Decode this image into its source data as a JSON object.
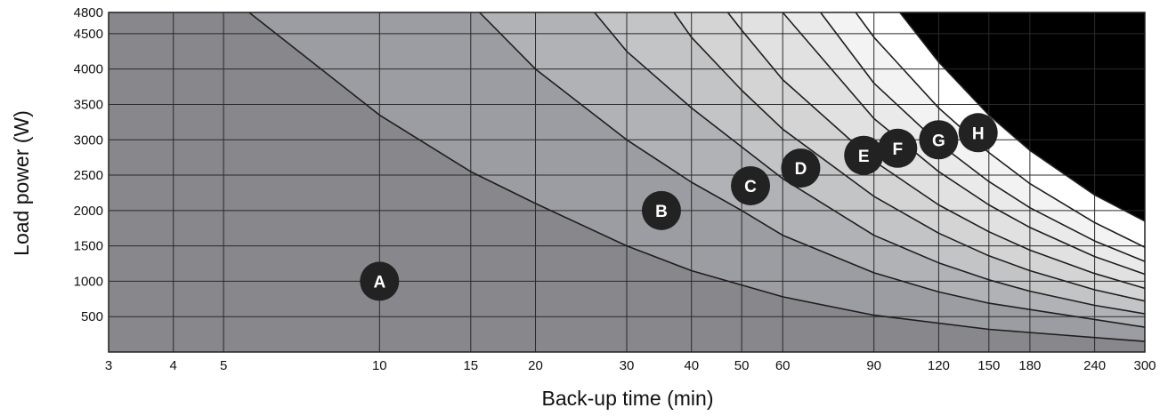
{
  "chart_data": {
    "type": "line",
    "xlabel": "Back-up time (min)",
    "ylabel": "Load power (W)",
    "x_scale": "log",
    "xlim": [
      3,
      300
    ],
    "ylim": [
      0,
      4800
    ],
    "x_ticks": [
      3,
      4,
      5,
      10,
      15,
      20,
      30,
      40,
      50,
      60,
      90,
      120,
      150,
      180,
      240,
      300
    ],
    "y_ticks": [
      500,
      1000,
      1500,
      2000,
      2500,
      3000,
      3500,
      4000,
      4500,
      4800
    ],
    "grid": true,
    "series": [
      {
        "name": "A",
        "x": [
          5.6,
          10,
          15,
          20,
          30,
          40,
          60,
          90,
          150,
          300
        ],
        "y": [
          4800,
          3350,
          2550,
          2100,
          1500,
          1150,
          780,
          520,
          320,
          150
        ]
      },
      {
        "name": "B",
        "x": [
          15.6,
          20,
          30,
          40,
          50,
          60,
          90,
          120,
          150,
          300
        ],
        "y": [
          4800,
          4000,
          3000,
          2400,
          2000,
          1650,
          1120,
          850,
          690,
          350
        ]
      },
      {
        "name": "C",
        "x": [
          26,
          30,
          40,
          50,
          60,
          90,
          120,
          150,
          180,
          240,
          300
        ],
        "y": [
          4800,
          4250,
          3450,
          2900,
          2450,
          1650,
          1260,
          1020,
          860,
          660,
          540
        ]
      },
      {
        "name": "D",
        "x": [
          37,
          40,
          50,
          60,
          90,
          120,
          150,
          180,
          240,
          300
        ],
        "y": [
          4800,
          4450,
          3700,
          3150,
          2200,
          1680,
          1360,
          1150,
          880,
          720
        ]
      },
      {
        "name": "E",
        "x": [
          47,
          50,
          60,
          90,
          120,
          150,
          180,
          240,
          300
        ],
        "y": [
          4800,
          4550,
          3850,
          2700,
          2080,
          1700,
          1440,
          1110,
          900
        ]
      },
      {
        "name": "F",
        "x": [
          60,
          90,
          120,
          150,
          180,
          240,
          300
        ],
        "y": [
          4800,
          3300,
          2550,
          2080,
          1760,
          1350,
          1100
        ]
      },
      {
        "name": "G",
        "x": [
          71,
          90,
          120,
          150,
          180,
          240,
          300
        ],
        "y": [
          4800,
          3800,
          2950,
          2410,
          2040,
          1570,
          1280
        ]
      },
      {
        "name": "H",
        "x": [
          83,
          90,
          120,
          150,
          180,
          240,
          300
        ],
        "y": [
          4800,
          4450,
          3450,
          2820,
          2380,
          1830,
          1480
        ]
      },
      {
        "name": "",
        "x": [
          101,
          120,
          150,
          180,
          240,
          300
        ],
        "y": [
          4800,
          4100,
          3350,
          2850,
          2220,
          1850
        ]
      }
    ],
    "markers": [
      {
        "label": "A",
        "x": 10,
        "y": 1000
      },
      {
        "label": "B",
        "x": 35,
        "y": 2000
      },
      {
        "label": "C",
        "x": 52,
        "y": 2350
      },
      {
        "label": "D",
        "x": 65,
        "y": 2600
      },
      {
        "label": "E",
        "x": 86,
        "y": 2780
      },
      {
        "label": "F",
        "x": 100,
        "y": 2880
      },
      {
        "label": "G",
        "x": 120,
        "y": 3000
      },
      {
        "label": "H",
        "x": 143,
        "y": 3100
      }
    ],
    "band_colors": [
      "#87878c",
      "#9c9da2",
      "#b1b2b5",
      "#c3c4c6",
      "#d4d4d5",
      "#e1e1e2",
      "#eaeaea",
      "#f3f3f3",
      "#ffffff"
    ],
    "marker_color": "#222222",
    "line_color": "#1e1e1e"
  }
}
